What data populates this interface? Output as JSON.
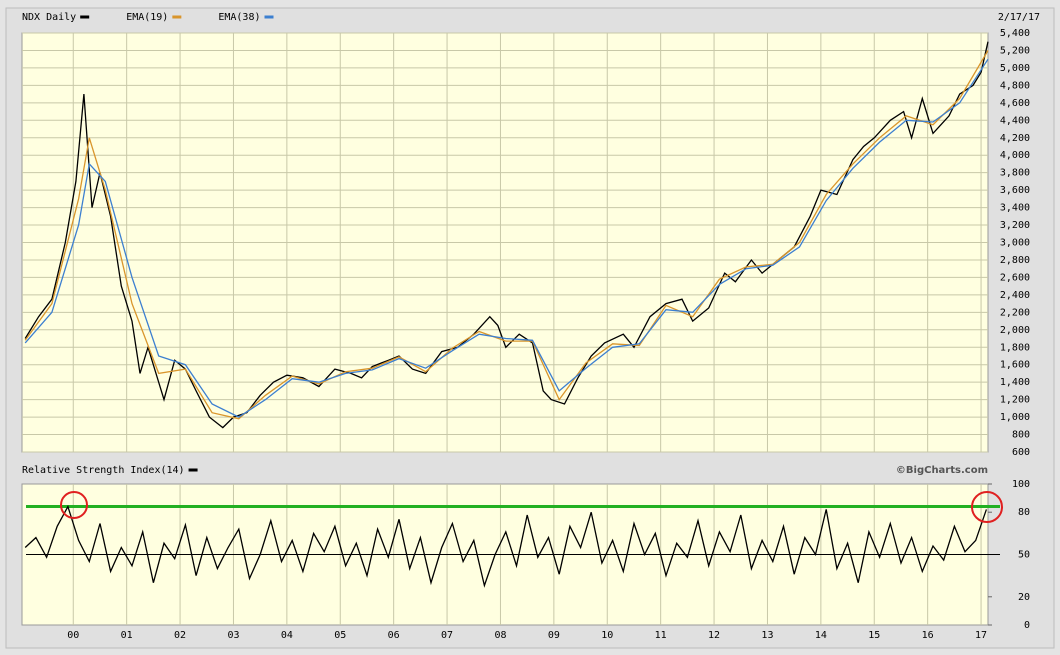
{
  "chart_data": [
    {
      "type": "line",
      "date_label": "2/17/17",
      "xlim": [
        1999.04,
        2017.13
      ],
      "ylim": [
        600,
        5400
      ],
      "yticks": [
        600,
        800,
        {
          "value": 1000,
          "label": "1,000"
        },
        {
          "value": 1200,
          "label": "1,200"
        },
        {
          "value": 1400,
          "label": "1,400"
        },
        {
          "value": 1600,
          "label": "1,600"
        },
        {
          "value": 1800,
          "label": "1,800"
        },
        {
          "value": 2000,
          "label": "2,000"
        },
        {
          "value": 2200,
          "label": "2,200"
        },
        {
          "value": 2400,
          "label": "2,400"
        },
        {
          "value": 2600,
          "label": "2,600"
        },
        {
          "value": 2800,
          "label": "2,800"
        },
        {
          "value": 3000,
          "label": "3,000"
        },
        {
          "value": 3200,
          "label": "3,200"
        },
        {
          "value": 3400,
          "label": "3,400"
        },
        {
          "value": 3600,
          "label": "3,600"
        },
        {
          "value": 3800,
          "label": "3,800"
        },
        {
          "value": 4000,
          "label": "4,000"
        },
        {
          "value": 4200,
          "label": "4,200"
        },
        {
          "value": 4400,
          "label": "4,400"
        },
        {
          "value": 4600,
          "label": "4,600"
        },
        {
          "value": 4800,
          "label": "4,800"
        },
        {
          "value": 5000,
          "label": "5,000"
        },
        {
          "value": 5200,
          "label": "5,200"
        },
        {
          "value": 5400,
          "label": "5,400"
        }
      ],
      "grid": true,
      "series": [
        {
          "name": "NDX Daily",
          "color": "#000000",
          "x": [
            1999.1,
            1999.35,
            1999.6,
            1999.85,
            2000.05,
            2000.2,
            2000.35,
            2000.5,
            2000.7,
            2000.9,
            2001.1,
            2001.25,
            2001.4,
            2001.7,
            2001.9,
            2002.1,
            2002.3,
            2002.55,
            2002.8,
            2003.0,
            2003.25,
            2003.5,
            2003.75,
            2004.0,
            2004.3,
            2004.6,
            2004.9,
            2005.2,
            2005.4,
            2005.6,
            2005.9,
            2006.1,
            2006.35,
            2006.6,
            2006.9,
            2007.2,
            2007.5,
            2007.8,
            2007.95,
            2008.1,
            2008.35,
            2008.6,
            2008.8,
            2008.95,
            2009.2,
            2009.45,
            2009.7,
            2009.95,
            2010.3,
            2010.5,
            2010.8,
            2011.1,
            2011.4,
            2011.6,
            2011.9,
            2012.2,
            2012.4,
            2012.7,
            2012.9,
            2013.2,
            2013.5,
            2013.8,
            2014.0,
            2014.3,
            2014.6,
            2014.8,
            2015.0,
            2015.3,
            2015.55,
            2015.7,
            2015.9,
            2016.1,
            2016.4,
            2016.6,
            2016.85,
            2017.0,
            2017.13
          ],
          "values": [
            1900,
            2150,
            2350,
            3000,
            3700,
            4700,
            3400,
            3800,
            3300,
            2500,
            2100,
            1500,
            1800,
            1200,
            1650,
            1550,
            1300,
            1000,
            880,
            1000,
            1050,
            1250,
            1400,
            1480,
            1450,
            1350,
            1550,
            1500,
            1450,
            1580,
            1650,
            1700,
            1550,
            1500,
            1750,
            1800,
            1950,
            2150,
            2050,
            1800,
            1950,
            1850,
            1300,
            1200,
            1150,
            1450,
            1700,
            1850,
            1950,
            1800,
            2150,
            2300,
            2350,
            2100,
            2250,
            2650,
            2550,
            2800,
            2650,
            2800,
            2950,
            3300,
            3600,
            3550,
            3950,
            4100,
            4200,
            4400,
            4500,
            4200,
            4650,
            4250,
            4450,
            4700,
            4800,
            4950,
            5300
          ]
        },
        {
          "name": "EMA(19)",
          "color": "#d9952b",
          "x": [
            1999.1,
            1999.6,
            2000.1,
            2000.3,
            2000.6,
            2001.1,
            2001.6,
            2002.1,
            2002.6,
            2003.1,
            2003.6,
            2004.1,
            2004.6,
            2005.1,
            2005.6,
            2006.1,
            2006.6,
            2007.1,
            2007.6,
            2008.1,
            2008.6,
            2009.1,
            2009.6,
            2010.1,
            2010.6,
            2011.1,
            2011.6,
            2012.1,
            2012.6,
            2013.1,
            2013.6,
            2014.1,
            2014.6,
            2015.1,
            2015.6,
            2016.1,
            2016.6,
            2017.13
          ],
          "values": [
            1880,
            2300,
            3500,
            4200,
            3600,
            2300,
            1500,
            1550,
            1050,
            980,
            1250,
            1470,
            1380,
            1520,
            1560,
            1690,
            1520,
            1790,
            1980,
            1870,
            1870,
            1200,
            1620,
            1840,
            1820,
            2280,
            2150,
            2580,
            2720,
            2750,
            3000,
            3550,
            3900,
            4200,
            4450,
            4350,
            4650,
            5200
          ]
        },
        {
          "name": "EMA(38)",
          "color": "#3c7fd0",
          "x": [
            1999.1,
            1999.6,
            2000.1,
            2000.3,
            2000.6,
            2001.1,
            2001.6,
            2002.1,
            2002.6,
            2003.1,
            2003.6,
            2004.1,
            2004.6,
            2005.1,
            2005.6,
            2006.1,
            2006.6,
            2007.1,
            2007.6,
            2008.1,
            2008.6,
            2009.1,
            2009.6,
            2010.1,
            2010.6,
            2011.1,
            2011.6,
            2012.1,
            2012.6,
            2013.1,
            2013.6,
            2014.1,
            2014.6,
            2015.1,
            2015.6,
            2016.1,
            2016.6,
            2017.13
          ],
          "values": [
            1850,
            2200,
            3200,
            3900,
            3700,
            2600,
            1700,
            1600,
            1150,
            1000,
            1200,
            1440,
            1400,
            1500,
            1540,
            1670,
            1560,
            1760,
            1950,
            1900,
            1880,
            1300,
            1560,
            1800,
            1840,
            2230,
            2200,
            2520,
            2700,
            2740,
            2950,
            3480,
            3850,
            4150,
            4400,
            4380,
            4600,
            5100
          ]
        }
      ]
    },
    {
      "type": "line",
      "credit": "©BigCharts.com",
      "xlim": [
        1999.04,
        2017.13
      ],
      "xticks": [
        {
          "value": 2000,
          "label": "00"
        },
        {
          "value": 2001,
          "label": "01"
        },
        {
          "value": 2002,
          "label": "02"
        },
        {
          "value": 2003,
          "label": "03"
        },
        {
          "value": 2004,
          "label": "04"
        },
        {
          "value": 2005,
          "label": "05"
        },
        {
          "value": 2006,
          "label": "06"
        },
        {
          "value": 2007,
          "label": "07"
        },
        {
          "value": 2008,
          "label": "08"
        },
        {
          "value": 2009,
          "label": "09"
        },
        {
          "value": 2010,
          "label": "10"
        },
        {
          "value": 2011,
          "label": "11"
        },
        {
          "value": 2012,
          "label": "12"
        },
        {
          "value": 2013,
          "label": "13"
        },
        {
          "value": 2014,
          "label": "14"
        },
        {
          "value": 2015,
          "label": "15"
        },
        {
          "value": 2016,
          "label": "16"
        },
        {
          "value": 2017,
          "label": "17"
        }
      ],
      "ylim": [
        0,
        100
      ],
      "yticks": [
        0,
        20,
        50,
        80,
        100
      ],
      "reference_lines": [
        {
          "value": 84,
          "color": "#22b022"
        },
        {
          "value": 50,
          "color": "#000000"
        }
      ],
      "series": [
        {
          "name": "Relative Strength Index(14)",
          "color": "#000000",
          "x": [
            1999.1,
            1999.3,
            1999.5,
            1999.7,
            1999.9,
            2000.1,
            2000.3,
            2000.5,
            2000.7,
            2000.9,
            2001.1,
            2001.3,
            2001.5,
            2001.7,
            2001.9,
            2002.1,
            2002.3,
            2002.5,
            2002.7,
            2002.9,
            2003.1,
            2003.3,
            2003.5,
            2003.7,
            2003.9,
            2004.1,
            2004.3,
            2004.5,
            2004.7,
            2004.9,
            2005.1,
            2005.3,
            2005.5,
            2005.7,
            2005.9,
            2006.1,
            2006.3,
            2006.5,
            2006.7,
            2006.9,
            2007.1,
            2007.3,
            2007.5,
            2007.7,
            2007.9,
            2008.1,
            2008.3,
            2008.5,
            2008.7,
            2008.9,
            2009.1,
            2009.3,
            2009.5,
            2009.7,
            2009.9,
            2010.1,
            2010.3,
            2010.5,
            2010.7,
            2010.9,
            2011.1,
            2011.3,
            2011.5,
            2011.7,
            2011.9,
            2012.1,
            2012.3,
            2012.5,
            2012.7,
            2012.9,
            2013.1,
            2013.3,
            2013.5,
            2013.7,
            2013.9,
            2014.1,
            2014.3,
            2014.5,
            2014.7,
            2014.9,
            2015.1,
            2015.3,
            2015.5,
            2015.7,
            2015.9,
            2016.1,
            2016.3,
            2016.5,
            2016.7,
            2016.9,
            2017.1
          ],
          "values": [
            55,
            62,
            48,
            70,
            84,
            60,
            45,
            72,
            38,
            55,
            42,
            66,
            30,
            58,
            47,
            71,
            35,
            62,
            40,
            55,
            68,
            33,
            50,
            74,
            45,
            60,
            38,
            65,
            52,
            70,
            42,
            58,
            35,
            68,
            48,
            75,
            40,
            62,
            30,
            55,
            72,
            45,
            60,
            28,
            50,
            66,
            42,
            78,
            48,
            62,
            36,
            70,
            55,
            80,
            44,
            60,
            38,
            72,
            50,
            65,
            35,
            58,
            48,
            74,
            42,
            66,
            52,
            78,
            40,
            60,
            45,
            70,
            36,
            62,
            50,
            82,
            40,
            58,
            30,
            66,
            48,
            72,
            44,
            62,
            38,
            56,
            46,
            70,
            52,
            60,
            82
          ]
        }
      ]
    }
  ]
}
